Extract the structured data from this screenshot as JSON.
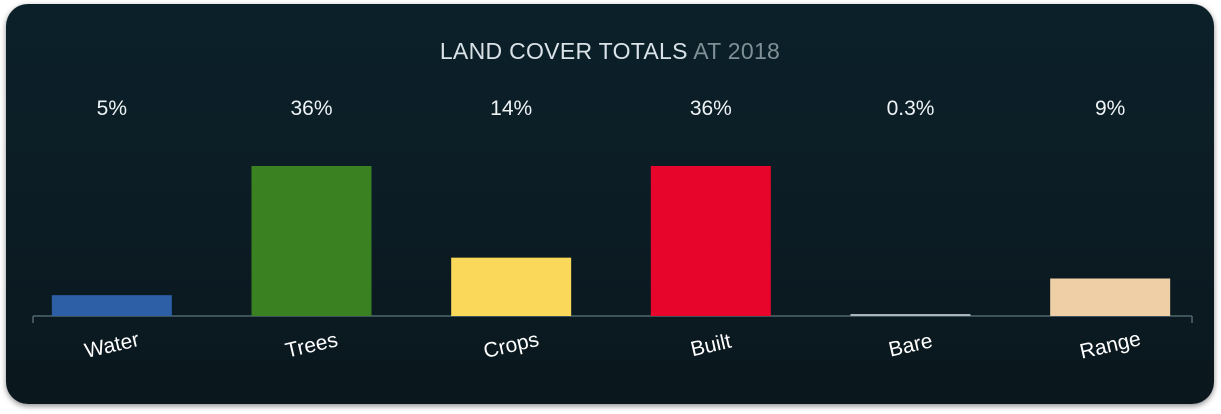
{
  "chart_data": {
    "type": "bar",
    "title": "LAND COVER TOTALS",
    "subtitle": "AT 2018",
    "categories": [
      "Water",
      "Trees",
      "Crops",
      "Built",
      "Bare",
      "Range"
    ],
    "values": [
      5,
      36,
      14,
      36,
      0.3,
      9
    ],
    "value_labels": [
      "5%",
      "36%",
      "14%",
      "36%",
      "0.3%",
      "9%"
    ],
    "colors": [
      "#2d5fa6",
      "#3a8122",
      "#f9d85a",
      "#e8052b",
      "#a9b3b8",
      "#efcfa5"
    ],
    "ylim": [
      0,
      36
    ],
    "unit": "%",
    "grid": false,
    "legend": "none"
  }
}
